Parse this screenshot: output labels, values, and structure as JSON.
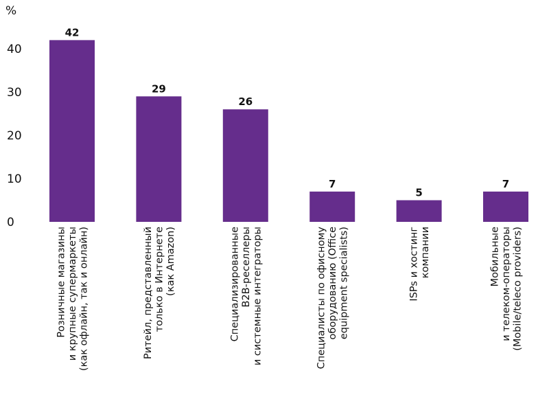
{
  "chart_data": {
    "type": "bar",
    "unit_label": "%",
    "ylim": [
      0,
      45
    ],
    "y_ticks": [
      0,
      10,
      20,
      30,
      40
    ],
    "grid": false,
    "legend": "none",
    "bar_color": "#652d8c",
    "categories": [
      [
        "Розничные магазины",
        "и крупные супермаркеты",
        "(как офлайн, так и онлайн)"
      ],
      [
        "Ритейл, представленный",
        "только в Интернете",
        "(как Amazon)"
      ],
      [
        "Специализированные",
        "B2B-реселлеры",
        "и системные интеграторы"
      ],
      [
        "Специалисты по офисному",
        "оборудованию (Office",
        "equipment specialists)"
      ],
      [
        "ISPs и хостинг",
        "компании"
      ],
      [
        "Мобильные",
        "и телеком-операторы",
        "(Mobile/teleco providers)"
      ]
    ],
    "values": [
      42,
      29,
      26,
      7,
      5,
      7
    ],
    "data_labels": [
      "42",
      "29",
      "26",
      "7",
      "5",
      "7"
    ]
  }
}
